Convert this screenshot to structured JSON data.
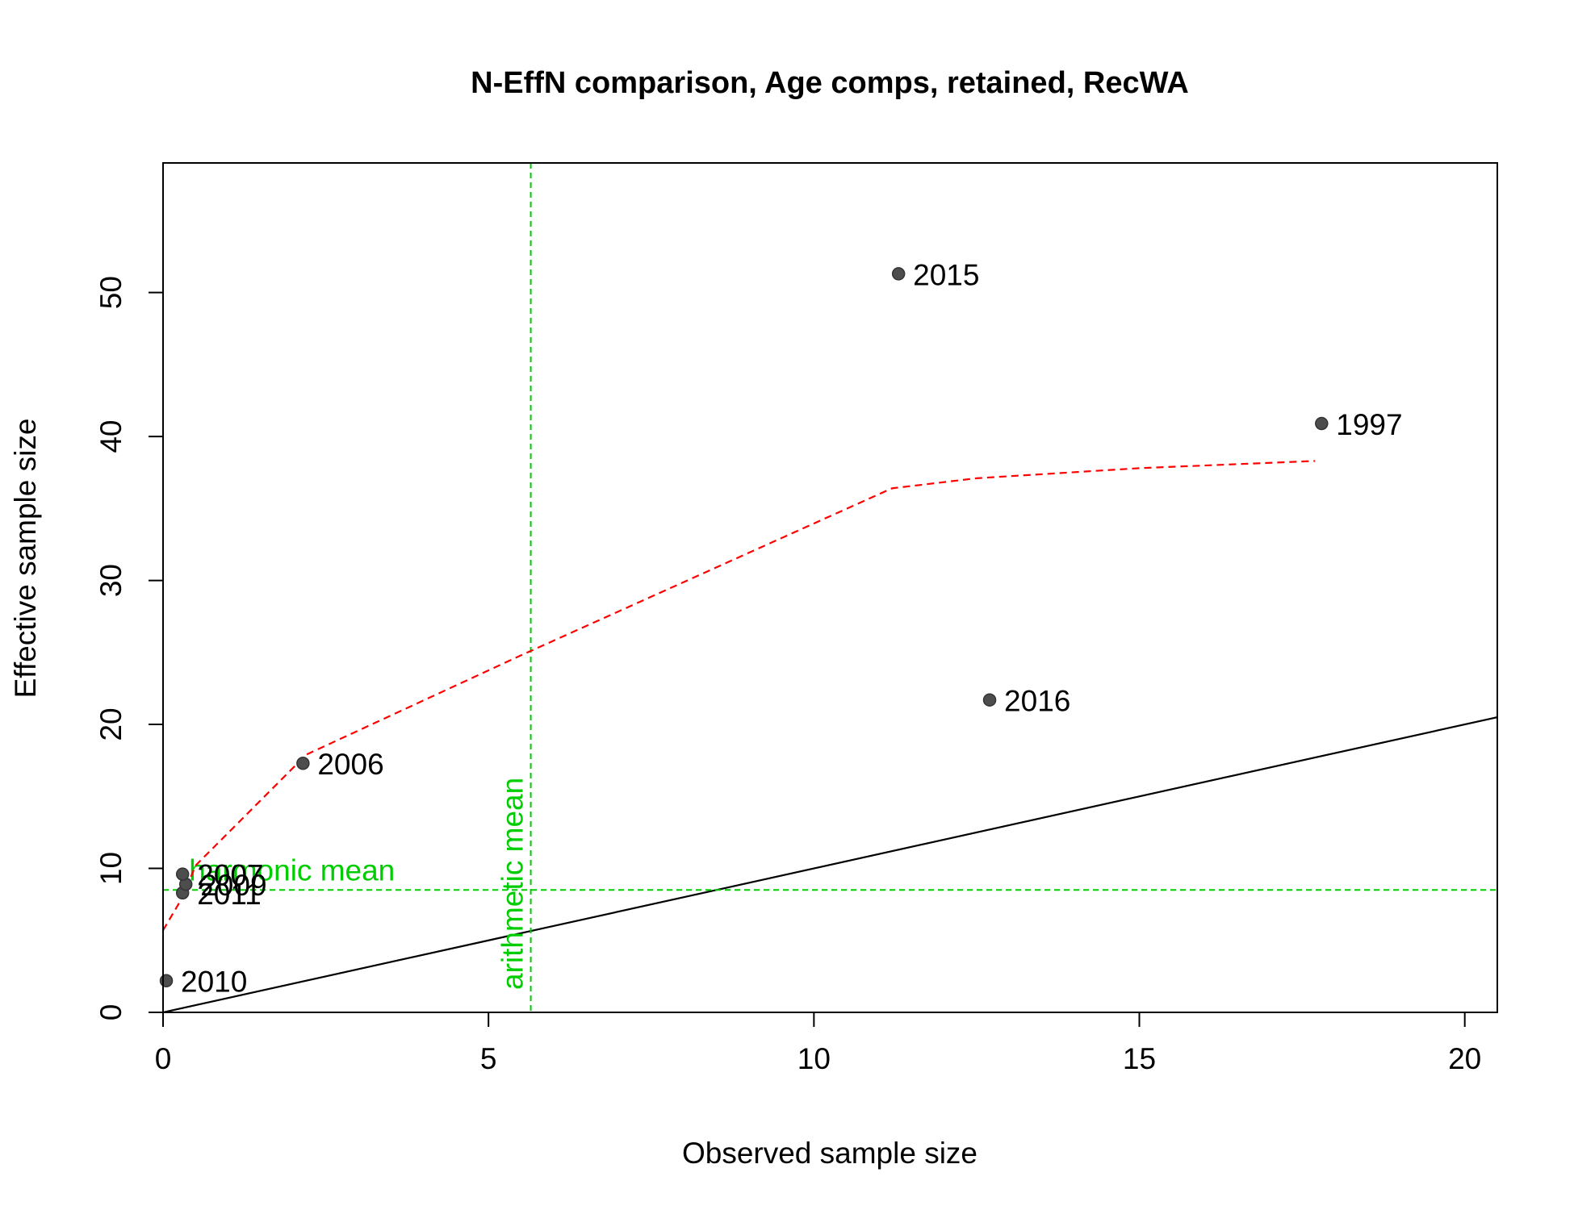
{
  "chart_data": {
    "type": "scatter",
    "title": "N-EffN comparison, Age comps, retained, RecWA",
    "xlabel": "Observed sample size",
    "ylabel": "Effective sample size",
    "xlim": [
      0,
      20.5
    ],
    "ylim": [
      0,
      59
    ],
    "xticks": [
      "0",
      "5",
      "10",
      "15",
      "20"
    ],
    "yticks": [
      "0",
      "10",
      "20",
      "30",
      "40",
      "50"
    ],
    "grid": false,
    "points": [
      {
        "label": "2010",
        "x": 0.05,
        "y": 2.2
      },
      {
        "label": "2011",
        "x": 0.3,
        "y": 8.3
      },
      {
        "label": "2009",
        "x": 0.35,
        "y": 8.9
      },
      {
        "label": "2007",
        "x": 0.3,
        "y": 9.6
      },
      {
        "label": "2006",
        "x": 2.15,
        "y": 17.3
      },
      {
        "label": "2015",
        "x": 11.3,
        "y": 51.3
      },
      {
        "label": "2016",
        "x": 12.7,
        "y": 21.7
      },
      {
        "label": "1997",
        "x": 17.8,
        "y": 40.9
      }
    ],
    "identity_line": {
      "x": [
        0,
        20.5
      ],
      "y": [
        0,
        20.5
      ],
      "color": "#000000"
    },
    "smoother": {
      "x": [
        0,
        0.3,
        0.5,
        2.2,
        5.5,
        11.2,
        12.5,
        15.0,
        17.7
      ],
      "y": [
        5.7,
        8.0,
        10.2,
        17.9,
        24.8,
        36.4,
        37.1,
        37.8,
        38.3
      ],
      "color": "#ff0000"
    },
    "harmonic_mean": {
      "label": "harmonic mean",
      "value": 8.5,
      "color": "#00cd00"
    },
    "arithmetic_mean": {
      "label": "arithmetic mean",
      "value": 5.65,
      "color": "#00cd00"
    },
    "point_color": "#4d4d4d"
  }
}
